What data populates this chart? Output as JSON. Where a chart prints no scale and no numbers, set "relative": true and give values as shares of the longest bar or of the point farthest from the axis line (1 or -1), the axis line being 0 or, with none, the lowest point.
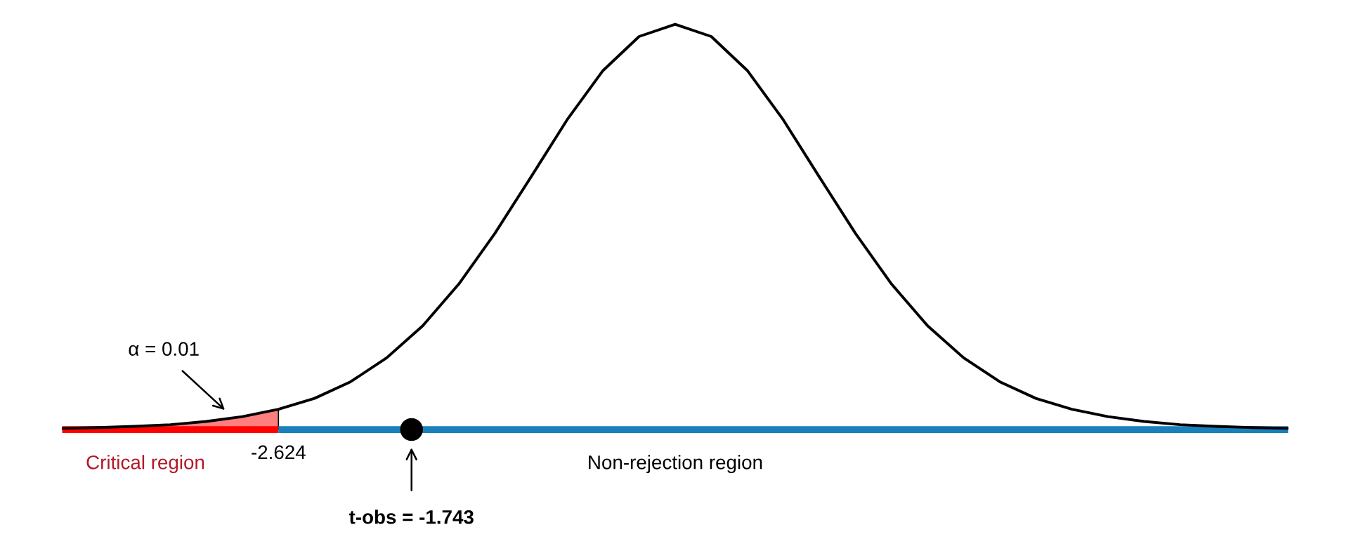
{
  "chart_data": {
    "type": "line",
    "relative": true,
    "categories": [
      null,
      null,
      null,
      null,
      null,
      null,
      null,
      null,
      null,
      null,
      null,
      null,
      null,
      null,
      null,
      null,
      null,
      null,
      null,
      null,
      null,
      null,
      null,
      null,
      null,
      null,
      null,
      null,
      null,
      null,
      null,
      null,
      null,
      null,
      null
    ],
    "series": [
      {
        "color": "#000000",
        "values": [
          0.003,
          0.005,
          0.008,
          0.012,
          0.02,
          0.032,
          0.05,
          0.077,
          0.118,
          0.177,
          0.256,
          0.359,
          0.484,
          0.623,
          0.764,
          0.886,
          0.97,
          1,
          0.97,
          0.886,
          0.764,
          0.623,
          0.484,
          0.359,
          0.256,
          0.177,
          0.118,
          0.077,
          0.05,
          0.032,
          0.02,
          0.012,
          0.008,
          0.005,
          0.003
        ]
      },
      {
        "type": "area",
        "color": "#ff7f7f",
        "values": [
          0.003,
          0.005,
          0.008,
          0.012,
          0.02,
          0.032,
          0.05,
          null,
          null,
          null,
          null,
          null,
          null,
          null,
          null,
          null,
          null,
          null,
          null,
          null,
          null,
          null,
          null,
          null,
          null,
          null,
          null,
          null,
          null,
          null,
          null,
          null,
          null,
          null,
          null
        ]
      }
    ],
    "annotations": [
      "-2.624",
      "α = 0.01",
      "t-obs = -1.743",
      "Critical region",
      "Non-rejection region"
    ]
  }
}
